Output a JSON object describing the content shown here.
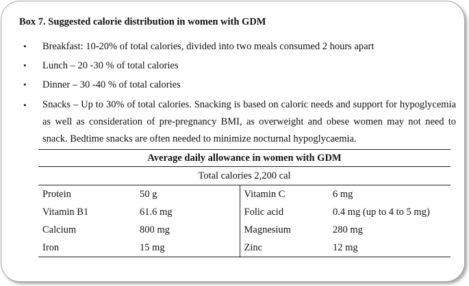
{
  "box": {
    "title": "Box 7. Suggested calorie distribution in women with GDM",
    "bullets": [
      "Breakfast: 10-20% of total calories, divided into two meals consumed 2 hours apart",
      "Lunch – 20 -30 % of total calories",
      "Dinner – 30 -40 % of total calories",
      "Snacks – Up to 30% of total calories. Snacking is based on caloric needs and support for hypoglycemia as well as consideration of pre-pregnancy BMI, as overweight and obese women may not need to snack. Bedtime snacks are often needed to minimize nocturnal hypoglycaemia."
    ],
    "bullet_symbol": "•"
  },
  "table": {
    "caption": "Average daily allowance in women with GDM",
    "total": "Total calories 2,200 cal",
    "rows": [
      {
        "n1": "Protein",
        "v1": "50 g",
        "n2": "Vitamin C",
        "v2": "6 mg"
      },
      {
        "n1": "Vitamin B1",
        "v1": "61.6 mg",
        "n2": "Folic acid",
        "v2": "0.4 mg (up to 4 to 5 mg)"
      },
      {
        "n1": "Calcium",
        "v1": "800 mg",
        "n2": "Magnesium",
        "v2": "280 mg"
      },
      {
        "n1": "Iron",
        "v1": "15 mg",
        "n2": "Zinc",
        "v2": "12 mg"
      }
    ]
  }
}
